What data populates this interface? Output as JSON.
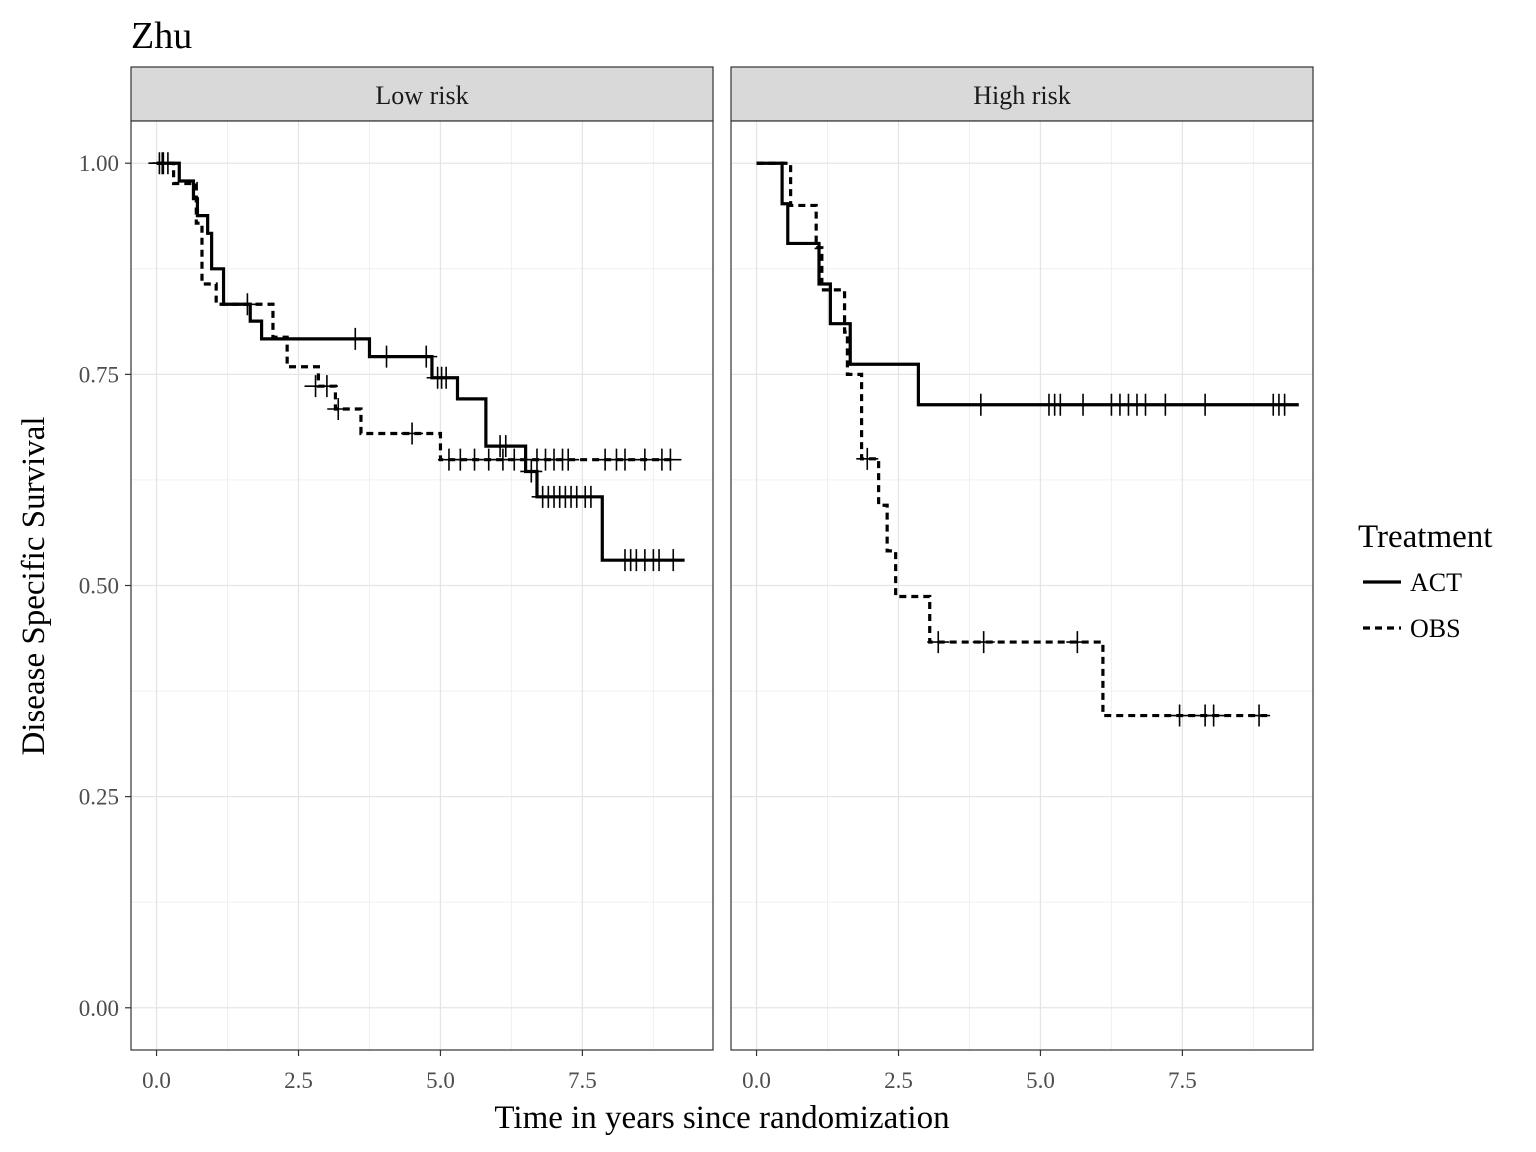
{
  "chart_data": {
    "type": "line",
    "title": "Zhu",
    "xlabel": "Time in years since randomization",
    "ylabel": "Disease Specific Survival",
    "xlim": [
      -0.45,
      9.8
    ],
    "ylim": [
      -0.05,
      1.05
    ],
    "x_ticks": [
      0,
      2.5,
      5,
      7.5
    ],
    "x_tick_labels": [
      "0.0",
      "2.5",
      "5.0",
      "7.5"
    ],
    "y_ticks": [
      0,
      0.25,
      0.5,
      0.75,
      1
    ],
    "y_tick_labels": [
      "0.00",
      "0.25",
      "0.50",
      "0.75",
      "1.00"
    ],
    "grid": true,
    "legend": {
      "title": "Treatment",
      "position": "right",
      "entries": [
        {
          "label": "ACT",
          "style": "solid"
        },
        {
          "label": "OBS",
          "style": "dashed"
        }
      ]
    },
    "line_color": "#000000",
    "panels": [
      {
        "strip": "Low risk",
        "series": [
          {
            "name": "ACT",
            "style": "solid",
            "steps": [
              [
                0,
                1
              ],
              [
                0.4,
                0.979
              ],
              [
                0.65,
                0.958
              ],
              [
                0.72,
                0.938
              ],
              [
                0.9,
                0.917
              ],
              [
                0.97,
                0.875
              ],
              [
                1.18,
                0.833
              ],
              [
                1.65,
                0.813
              ],
              [
                1.85,
                0.792
              ],
              [
                3.75,
                0.771
              ],
              [
                4.85,
                0.746
              ],
              [
                5.3,
                0.721
              ],
              [
                5.8,
                0.665
              ],
              [
                6.5,
                0.635
              ],
              [
                6.7,
                0.605
              ],
              [
                7.85,
                0.53
              ]
            ],
            "end": 9.3,
            "censor": [
              [
                0.05,
                1
              ],
              [
                0.12,
                1
              ],
              [
                0.2,
                1
              ],
              [
                1.6,
                0.833
              ],
              [
                3.5,
                0.792
              ],
              [
                4.05,
                0.771
              ],
              [
                4.75,
                0.771
              ],
              [
                4.95,
                0.746
              ],
              [
                5.02,
                0.746
              ],
              [
                5.1,
                0.746
              ],
              [
                6.05,
                0.665
              ],
              [
                6.15,
                0.665
              ],
              [
                6.6,
                0.635
              ],
              [
                6.8,
                0.605
              ],
              [
                6.9,
                0.605
              ],
              [
                7.0,
                0.605
              ],
              [
                7.1,
                0.605
              ],
              [
                7.2,
                0.605
              ],
              [
                7.3,
                0.605
              ],
              [
                7.4,
                0.605
              ],
              [
                7.55,
                0.605
              ],
              [
                7.65,
                0.605
              ],
              [
                8.25,
                0.53
              ],
              [
                8.35,
                0.53
              ],
              [
                8.45,
                0.53
              ],
              [
                8.6,
                0.53
              ],
              [
                8.75,
                0.53
              ],
              [
                8.85,
                0.53
              ],
              [
                9.1,
                0.53
              ]
            ]
          },
          {
            "name": "OBS",
            "style": "dashed",
            "steps": [
              [
                0,
                1
              ],
              [
                0.3,
                0.976
              ],
              [
                0.7,
                0.929
              ],
              [
                0.8,
                0.857
              ],
              [
                1.05,
                0.833
              ],
              [
                2.05,
                0.794
              ],
              [
                2.3,
                0.759
              ],
              [
                2.85,
                0.736
              ],
              [
                3.15,
                0.709
              ],
              [
                3.6,
                0.68
              ],
              [
                5.0,
                0.649
              ]
            ],
            "end": 9.15,
            "censor": [
              [
                0.1,
                1
              ],
              [
                2.8,
                0.736
              ],
              [
                3.0,
                0.736
              ],
              [
                3.2,
                0.709
              ],
              [
                4.5,
                0.68
              ],
              [
                5.15,
                0.649
              ],
              [
                5.35,
                0.649
              ],
              [
                5.6,
                0.649
              ],
              [
                5.85,
                0.649
              ],
              [
                6.1,
                0.649
              ],
              [
                6.3,
                0.649
              ],
              [
                6.5,
                0.649
              ],
              [
                6.7,
                0.649
              ],
              [
                6.85,
                0.649
              ],
              [
                7.0,
                0.649
              ],
              [
                7.15,
                0.649
              ],
              [
                7.25,
                0.649
              ],
              [
                7.9,
                0.649
              ],
              [
                8.1,
                0.649
              ],
              [
                8.25,
                0.649
              ],
              [
                8.6,
                0.649
              ],
              [
                8.9,
                0.649
              ],
              [
                9.05,
                0.649
              ]
            ]
          }
        ]
      },
      {
        "strip": "High risk",
        "series": [
          {
            "name": "ACT",
            "style": "solid",
            "steps": [
              [
                0,
                1
              ],
              [
                0.45,
                0.952
              ],
              [
                0.55,
                0.905
              ],
              [
                1.1,
                0.857
              ],
              [
                1.3,
                0.81
              ],
              [
                1.65,
                0.762
              ],
              [
                2.85,
                0.714
              ]
            ],
            "end": 9.55,
            "censor": [
              [
                3.95,
                0.714
              ],
              [
                5.15,
                0.714
              ],
              [
                5.25,
                0.714
              ],
              [
                5.35,
                0.714
              ],
              [
                5.75,
                0.714
              ],
              [
                6.25,
                0.714
              ],
              [
                6.4,
                0.714
              ],
              [
                6.55,
                0.714
              ],
              [
                6.7,
                0.714
              ],
              [
                6.85,
                0.714
              ],
              [
                7.2,
                0.714
              ],
              [
                7.9,
                0.714
              ],
              [
                9.1,
                0.714
              ],
              [
                9.2,
                0.714
              ],
              [
                9.3,
                0.714
              ]
            ]
          },
          {
            "name": "OBS",
            "style": "dashed",
            "steps": [
              [
                0,
                1
              ],
              [
                0.6,
                0.95
              ],
              [
                1.05,
                0.9
              ],
              [
                1.15,
                0.85
              ],
              [
                1.55,
                0.8
              ],
              [
                1.6,
                0.75
              ],
              [
                1.85,
                0.65
              ],
              [
                2.15,
                0.595
              ],
              [
                2.3,
                0.541
              ],
              [
                2.45,
                0.487
              ],
              [
                3.05,
                0.433
              ],
              [
                6.1,
                0.346
              ]
            ],
            "end": 9.0,
            "censor": [
              [
                1.95,
                0.65
              ],
              [
                3.2,
                0.433
              ],
              [
                4.0,
                0.433
              ],
              [
                5.65,
                0.433
              ],
              [
                7.45,
                0.346
              ],
              [
                7.9,
                0.346
              ],
              [
                8.05,
                0.346
              ],
              [
                8.85,
                0.346
              ]
            ]
          }
        ]
      }
    ]
  }
}
